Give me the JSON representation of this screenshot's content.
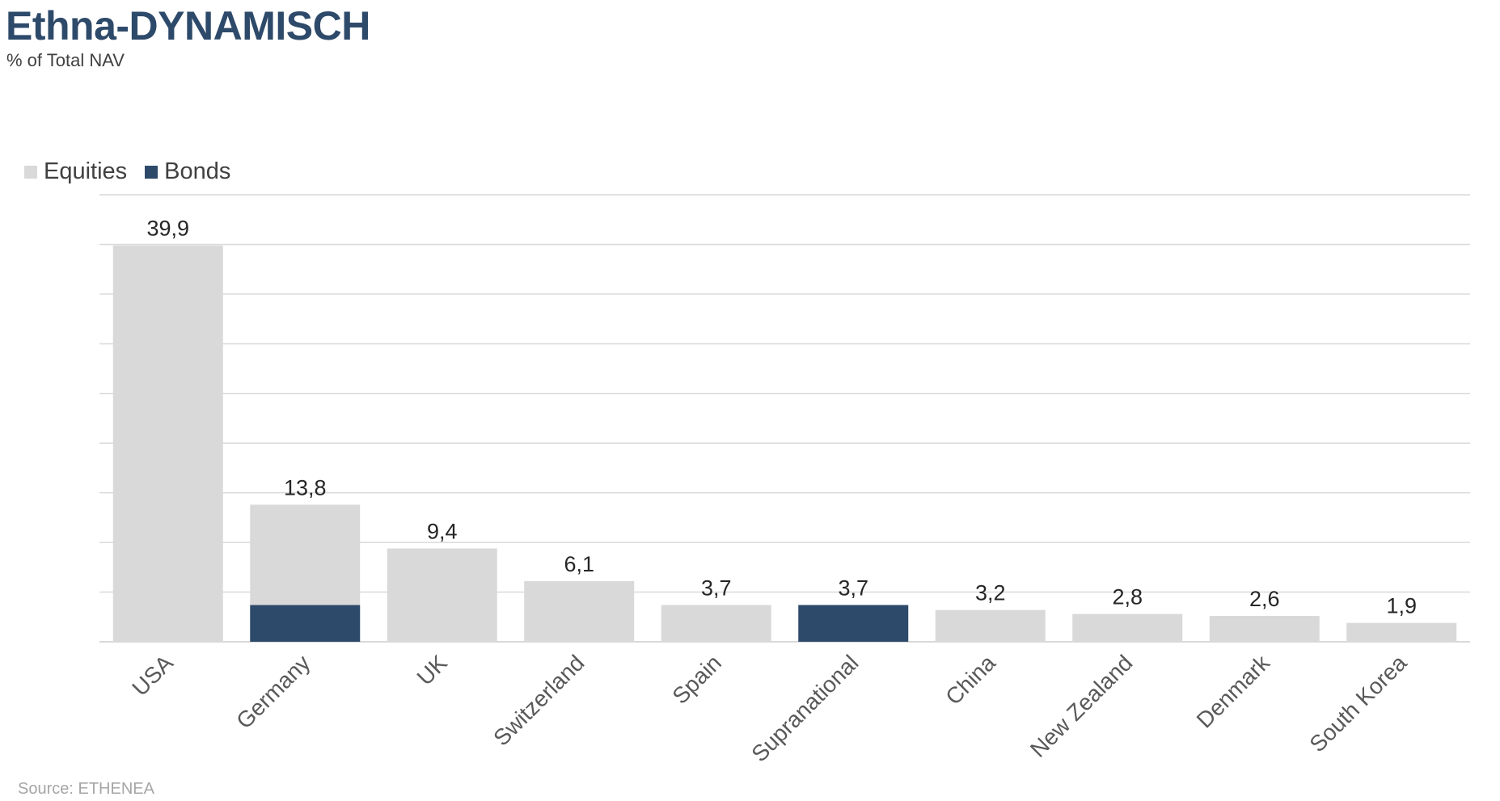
{
  "header": {
    "title": "Ethna-DYNAMISCH",
    "subtitle": "% of Total NAV"
  },
  "footer": {
    "source": "Source: ETHENEA"
  },
  "colors": {
    "title": "#2e4a6a",
    "equities": "#d9d9d9",
    "bonds": "#2e4a6a",
    "gridline": "#d9d9d9",
    "label_text": "#262626",
    "axis_text": "#595959"
  },
  "chart_data": {
    "type": "bar",
    "stacked": true,
    "title": "Ethna-DYNAMISCH",
    "subtitle": "% of Total NAV",
    "categories": [
      "USA",
      "Germany",
      "UK",
      "Switzerland",
      "Spain",
      "Supranational",
      "China",
      "New Zealand",
      "Denmark",
      "South Korea"
    ],
    "series": [
      {
        "name": "Equities",
        "values": [
          39.9,
          10.1,
          9.4,
          6.1,
          3.7,
          0,
          3.2,
          2.8,
          2.6,
          1.9
        ]
      },
      {
        "name": "Bonds",
        "values": [
          0,
          3.7,
          0,
          0,
          0,
          3.7,
          0,
          0,
          0,
          0
        ]
      }
    ],
    "totals": [
      "39,9",
      "13,8",
      "9,4",
      "6,1",
      "3,7",
      "3,7",
      "3,2",
      "2,8",
      "2,6",
      "1,9"
    ],
    "ylim": [
      0,
      45
    ],
    "ytick_step": 5,
    "grid": true,
    "legend": "top-left",
    "xlabel": "",
    "ylabel": ""
  }
}
